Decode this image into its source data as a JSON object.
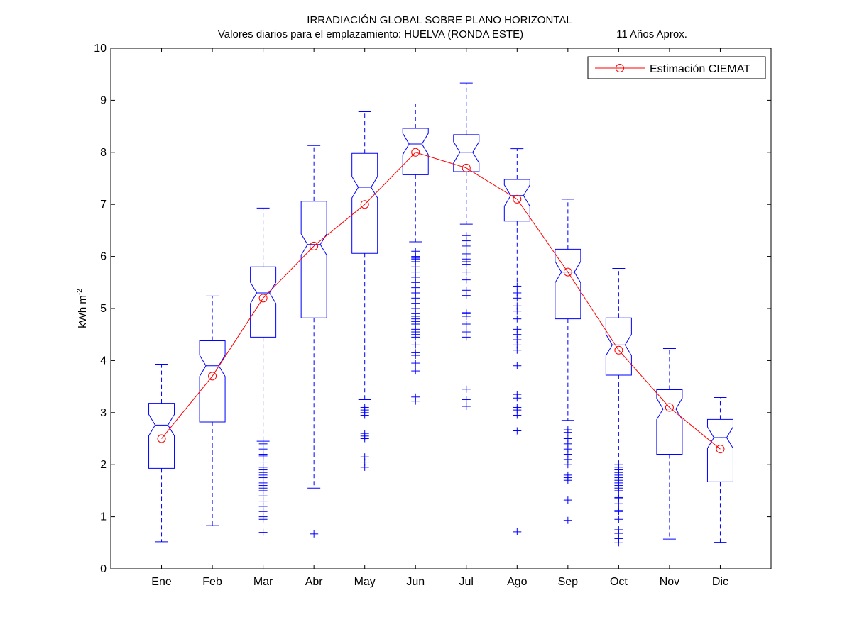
{
  "chart_data": {
    "type": "boxplot",
    "title": "IRRADIACIÓN GLOBAL SOBRE PLANO HORIZONTAL",
    "subtitle": "Valores diarios para el emplazamiento:  HUELVA (RONDA ESTE)",
    "subtitle_right": "11 Años Aprox.",
    "ylabel_main": "kWh m",
    "ylabel_sup": "-2",
    "xlabel": "",
    "ylim": [
      0,
      10
    ],
    "yticks": [
      "0",
      "1",
      "2",
      "3",
      "4",
      "5",
      "6",
      "7",
      "8",
      "9",
      "10"
    ],
    "categories": [
      "Ene",
      "Feb",
      "Mar",
      "Abr",
      "May",
      "Jun",
      "Jul",
      "Ago",
      "Sep",
      "Oct",
      "Nov",
      "Dic"
    ],
    "legend": {
      "label": "Estimación CIEMAT",
      "position": "top-right"
    },
    "colors": {
      "box": "#0000ff",
      "line": "#ff0000",
      "axis": "#000000"
    },
    "boxes": [
      {
        "whisker_low": 0.52,
        "q1": 1.93,
        "median": 2.76,
        "q3": 3.18,
        "whisker_high": 3.93,
        "outliers": []
      },
      {
        "whisker_low": 0.83,
        "q1": 2.82,
        "median": 3.9,
        "q3": 4.38,
        "whisker_high": 5.24,
        "outliers": []
      },
      {
        "whisker_low": 2.45,
        "q1": 4.45,
        "median": 5.3,
        "q3": 5.8,
        "whisker_high": 6.93,
        "outliers": [
          2.4,
          2.3,
          2.2,
          2.18,
          2.15,
          2.05,
          1.95,
          1.9,
          1.85,
          1.8,
          1.75,
          1.65,
          1.6,
          1.55,
          1.5,
          1.4,
          1.3,
          1.2,
          1.1,
          1.0,
          0.95,
          0.7
        ]
      },
      {
        "whisker_low": 1.55,
        "q1": 4.82,
        "median": 6.23,
        "q3": 7.06,
        "whisker_high": 8.13,
        "outliers": [
          0.67
        ]
      },
      {
        "whisker_low": 3.25,
        "q1": 6.06,
        "median": 7.33,
        "q3": 7.98,
        "whisker_high": 8.78,
        "outliers": [
          3.1,
          3.05,
          3.0,
          2.95,
          2.6,
          2.55,
          2.5,
          2.15,
          2.05,
          1.95
        ]
      },
      {
        "whisker_low": 6.28,
        "q1": 7.57,
        "median": 8.16,
        "q3": 8.46,
        "whisker_high": 8.93,
        "outliers": [
          6.1,
          6.0,
          5.97,
          5.95,
          5.9,
          5.8,
          5.7,
          5.6,
          5.5,
          5.4,
          5.3,
          5.28,
          5.2,
          5.1,
          5.0,
          4.9,
          4.85,
          4.8,
          4.75,
          4.7,
          4.6,
          4.55,
          4.5,
          4.45,
          4.3,
          4.15,
          4.1,
          3.95,
          3.8,
          3.3,
          3.22
        ]
      },
      {
        "whisker_low": 6.62,
        "q1": 7.63,
        "median": 8.0,
        "q3": 8.34,
        "whisker_high": 9.33,
        "outliers": [
          6.4,
          6.3,
          6.2,
          6.05,
          5.95,
          5.9,
          5.85,
          5.7,
          5.55,
          5.35,
          5.25,
          4.92,
          4.9,
          4.85,
          4.7,
          4.55,
          4.45,
          3.45,
          3.25,
          3.12
        ]
      },
      {
        "whisker_low": 5.47,
        "q1": 6.68,
        "median": 7.17,
        "q3": 7.48,
        "whisker_high": 8.07,
        "outliers": [
          5.43,
          5.3,
          5.2,
          5.05,
          4.95,
          4.8,
          4.6,
          4.5,
          4.4,
          4.3,
          4.2,
          3.9,
          3.35,
          3.28,
          3.1,
          3.05,
          2.95,
          2.65,
          0.71
        ]
      },
      {
        "whisker_low": 2.85,
        "q1": 4.8,
        "median": 5.7,
        "q3": 6.14,
        "whisker_high": 7.1,
        "outliers": [
          2.67,
          2.62,
          2.5,
          2.4,
          2.3,
          2.2,
          2.1,
          2.0,
          1.8,
          1.75,
          1.7,
          1.32,
          0.93
        ]
      },
      {
        "whisker_low": 2.05,
        "q1": 3.72,
        "median": 4.3,
        "q3": 4.82,
        "whisker_high": 5.77,
        "outliers": [
          2.0,
          1.95,
          1.9,
          1.85,
          1.8,
          1.75,
          1.7,
          1.65,
          1.6,
          1.55,
          1.5,
          1.37,
          1.35,
          1.25,
          1.12,
          1.1,
          0.95,
          0.75,
          0.68,
          0.58,
          0.5
        ]
      },
      {
        "whisker_low": 0.57,
        "q1": 2.2,
        "median": 3.07,
        "q3": 3.44,
        "whisker_high": 4.23,
        "outliers": []
      },
      {
        "whisker_low": 0.51,
        "q1": 1.67,
        "median": 2.52,
        "q3": 2.87,
        "whisker_high": 3.29,
        "outliers": []
      }
    ],
    "series": [
      {
        "name": "Estimación CIEMAT",
        "values": [
          2.5,
          3.7,
          5.2,
          6.2,
          7.0,
          8.0,
          7.7,
          7.1,
          5.7,
          4.2,
          3.1,
          2.3
        ]
      }
    ]
  }
}
